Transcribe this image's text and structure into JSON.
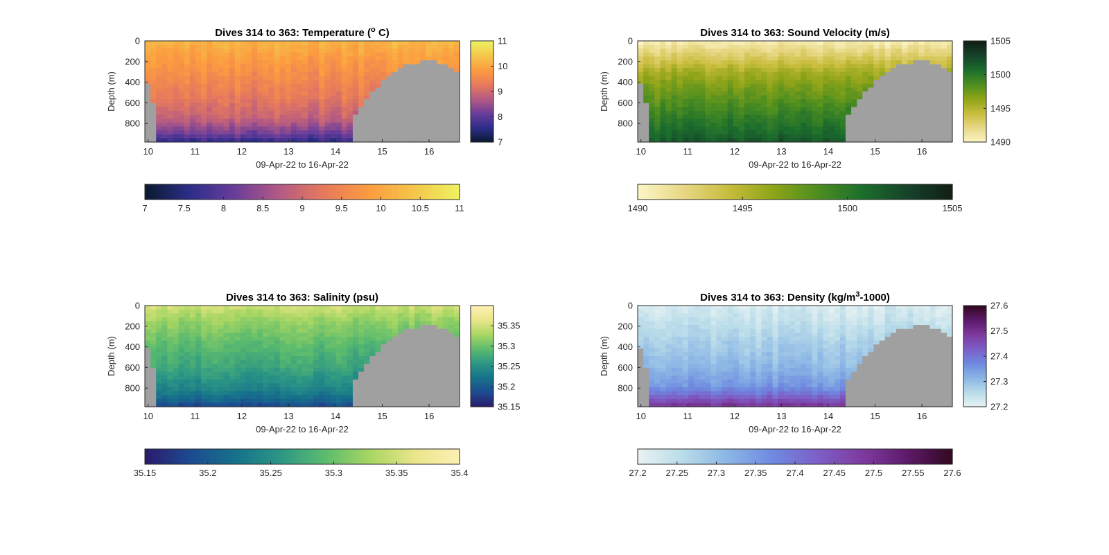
{
  "figure": {
    "nodata_color": "#a0a0a0",
    "x_tick_labels": [
      "10",
      "11",
      "12",
      "13",
      "14",
      "15",
      "16"
    ],
    "y_tick_labels": [
      "0",
      "200",
      "400",
      "600",
      "800"
    ],
    "xlabel": "09-Apr-22 to 16-Apr-22",
    "ylabel": "Depth (m)"
  },
  "chart_data": [
    {
      "type": "heatmap",
      "title_prefix": "Dives 314 to 363: Temperature (",
      "title_sup": "o",
      "title_suffix": " C)",
      "xlabel": "09-Apr-22 to 16-Apr-22",
      "ylabel": "Depth (m)",
      "xlim": [
        9.93,
        16.65
      ],
      "ylim": [
        0,
        980
      ],
      "x_ticks": [
        10,
        11,
        12,
        13,
        14,
        15,
        16
      ],
      "y_ticks": [
        0,
        200,
        400,
        600,
        800
      ],
      "clim": [
        7,
        11
      ],
      "colormap": [
        "#0a1a2e",
        "#2d2d8a",
        "#6a3d9a",
        "#b45a84",
        "#e77a5c",
        "#fc9c40",
        "#f4c64a",
        "#eef262"
      ],
      "side_colorbar_ticks": [
        "7",
        "8",
        "9",
        "10",
        "11"
      ],
      "bottom_colorbar_ticks": [
        "7",
        "7.5",
        "8",
        "8.5",
        "9",
        "9.5",
        "10",
        "10.5",
        "11"
      ],
      "profile": [
        [
          0,
          10.2
        ],
        [
          150,
          9.9
        ],
        [
          350,
          9.6
        ],
        [
          550,
          9.3
        ],
        [
          750,
          8.9
        ],
        [
          880,
          8.3
        ],
        [
          980,
          7.6
        ]
      ]
    },
    {
      "type": "heatmap",
      "title": "Dives 314 to 363: Sound Velocity (m/s)",
      "xlabel": "09-Apr-22 to 16-Apr-22",
      "ylabel": "Depth (m)",
      "xlim": [
        9.93,
        16.65
      ],
      "ylim": [
        0,
        980
      ],
      "x_ticks": [
        10,
        11,
        12,
        13,
        14,
        15,
        16
      ],
      "y_ticks": [
        0,
        200,
        400,
        600,
        800
      ],
      "clim": [
        1490,
        1505
      ],
      "colormap": [
        "#fcf6c7",
        "#e8d886",
        "#c9bd3e",
        "#8fa418",
        "#4d8e20",
        "#1c6e2d",
        "#16422a",
        "#111e14"
      ],
      "side_colorbar_ticks": [
        "1490",
        "1495",
        "1500",
        "1505"
      ],
      "bottom_colorbar_ticks": [
        "1490",
        "1495",
        "1500",
        "1505"
      ],
      "profile": [
        [
          0,
          1490.5
        ],
        [
          120,
          1492.5
        ],
        [
          300,
          1495.5
        ],
        [
          500,
          1497.5
        ],
        [
          700,
          1499.3
        ],
        [
          900,
          1501.0
        ],
        [
          980,
          1501.8
        ]
      ]
    },
    {
      "type": "heatmap",
      "title": "Dives 314 to 363: Salinity (psu)",
      "xlabel": "09-Apr-22 to 16-Apr-22",
      "ylabel": "Depth (m)",
      "xlim": [
        9.93,
        16.65
      ],
      "ylim": [
        0,
        980
      ],
      "x_ticks": [
        10,
        11,
        12,
        13,
        14,
        15,
        16
      ],
      "y_ticks": [
        0,
        200,
        400,
        600,
        800
      ],
      "clim": [
        35.15,
        35.4
      ],
      "colormap": [
        "#2b1a6b",
        "#1d4a91",
        "#16718b",
        "#2b9685",
        "#5bbb6e",
        "#a7d662",
        "#eae68a",
        "#fdf0b4"
      ],
      "side_colorbar_ticks": [
        "35.15",
        "35.2",
        "35.25",
        "35.3",
        "35.35"
      ],
      "bottom_colorbar_ticks": [
        "35.15",
        "35.2",
        "35.25",
        "35.3",
        "35.35",
        "35.4"
      ],
      "profile": [
        [
          0,
          35.35
        ],
        [
          150,
          35.32
        ],
        [
          400,
          35.29
        ],
        [
          600,
          35.27
        ],
        [
          800,
          35.24
        ],
        [
          920,
          35.21
        ],
        [
          980,
          35.18
        ]
      ]
    },
    {
      "type": "heatmap",
      "title_prefix": "Dives 314 to 363: Density (kg/m",
      "title_sup": "3",
      "title_suffix": "-1000)",
      "xlabel": "09-Apr-22 to 16-Apr-22",
      "ylabel": "Depth (m)",
      "xlim": [
        9.93,
        16.65
      ],
      "ylim": [
        0,
        980
      ],
      "x_ticks": [
        10,
        11,
        12,
        13,
        14,
        15,
        16
      ],
      "y_ticks": [
        0,
        200,
        400,
        600,
        800
      ],
      "clim": [
        27.2,
        27.6
      ],
      "colormap": [
        "#e9f3f3",
        "#b9dce9",
        "#8bb6e5",
        "#6e8ae0",
        "#7d5fc8",
        "#7e3b9e",
        "#5d1a6b",
        "#33081f"
      ],
      "side_colorbar_ticks": [
        "27.2",
        "27.3",
        "27.4",
        "27.5",
        "27.6"
      ],
      "bottom_colorbar_ticks": [
        "27.2",
        "27.25",
        "27.3",
        "27.35",
        "27.4",
        "27.45",
        "27.5",
        "27.55",
        "27.6"
      ],
      "profile": [
        [
          0,
          27.22
        ],
        [
          200,
          27.25
        ],
        [
          400,
          27.28
        ],
        [
          600,
          27.31
        ],
        [
          780,
          27.35
        ],
        [
          900,
          27.43
        ],
        [
          980,
          27.5
        ]
      ]
    }
  ]
}
